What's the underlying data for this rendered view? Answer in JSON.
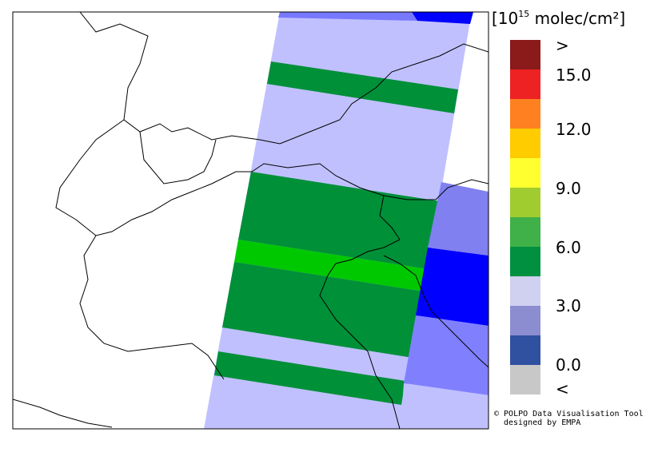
{
  "legend": {
    "unit": {
      "open": "[10",
      "exponent": "15",
      "rest": " molec/cm²]"
    },
    "labels": [
      ">",
      "15.0",
      "12.0",
      "9.0",
      "6.0",
      "3.0",
      "0.0",
      "<"
    ]
  },
  "credits": [
    "© POLPO Data Visualisation Tool",
    "designed by EMPA"
  ]
}
